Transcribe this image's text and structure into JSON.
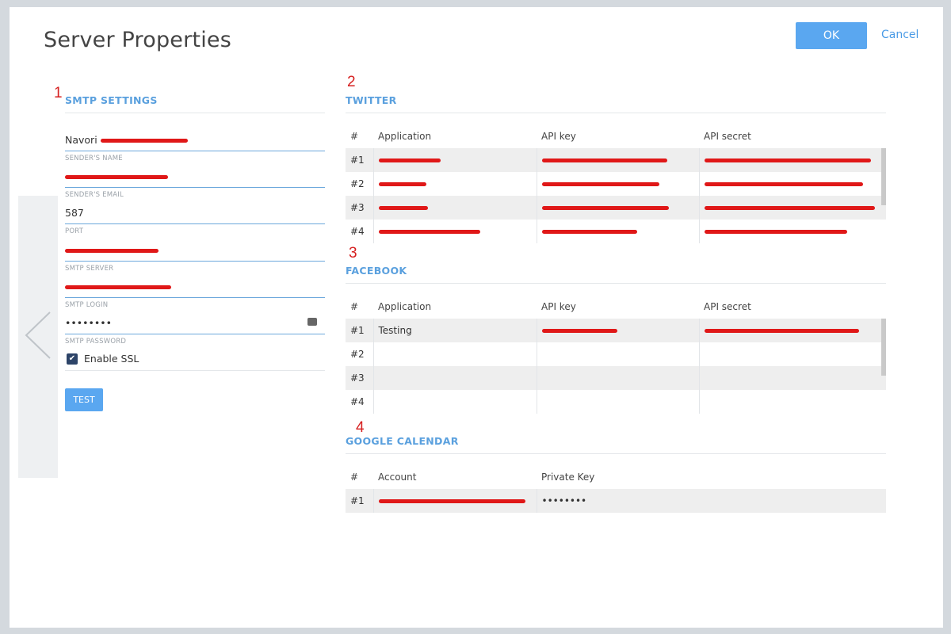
{
  "dialog": {
    "title": "Server Properties",
    "ok_label": "OK",
    "cancel_label": "Cancel"
  },
  "markers": [
    "1",
    "2",
    "3",
    "4"
  ],
  "smtp": {
    "section_title": "SMTP SETTINGS",
    "fields": [
      {
        "value": "Navori",
        "label": "SENDER'S NAME"
      },
      {
        "value": "",
        "label": "SENDER'S EMAIL"
      },
      {
        "value": "587",
        "label": "PORT"
      },
      {
        "value": "",
        "label": "SMTP SERVER"
      },
      {
        "value": "",
        "label": "SMTP LOGIN"
      },
      {
        "value": "••••••••",
        "label": "SMTP PASSWORD"
      }
    ],
    "ssl_label": "Enable SSL",
    "ssl_checked": true,
    "test_label": "TEST"
  },
  "twitter": {
    "section_title": "TWITTER",
    "columns": [
      "#",
      "Application",
      "API key",
      "API secret"
    ],
    "rows": [
      {
        "num": "#1",
        "app": "",
        "key": "",
        "secret": ""
      },
      {
        "num": "#2",
        "app": "",
        "key": "",
        "secret": ""
      },
      {
        "num": "#3",
        "app": "",
        "key": "",
        "secret": ""
      },
      {
        "num": "#4",
        "app": "",
        "key": "",
        "secret": ""
      }
    ]
  },
  "facebook": {
    "section_title": "FACEBOOK",
    "columns": [
      "#",
      "Application",
      "API key",
      "API secret"
    ],
    "rows": [
      {
        "num": "#1",
        "app": "Testing",
        "key": "",
        "secret": ""
      },
      {
        "num": "#2",
        "app": "",
        "key": "",
        "secret": ""
      },
      {
        "num": "#3",
        "app": "",
        "key": "",
        "secret": ""
      },
      {
        "num": "#4",
        "app": "",
        "key": "",
        "secret": ""
      }
    ]
  },
  "google_calendar": {
    "section_title": "GOOGLE CALENDAR",
    "columns": [
      "#",
      "Account",
      "Private Key"
    ],
    "rows": [
      {
        "num": "#1",
        "account": "",
        "private_key": "••••••••"
      }
    ]
  },
  "colors": {
    "accent": "#5aa7f0",
    "section_title": "#5aa0de",
    "marker": "#d62020",
    "redaction": "#e01818"
  }
}
